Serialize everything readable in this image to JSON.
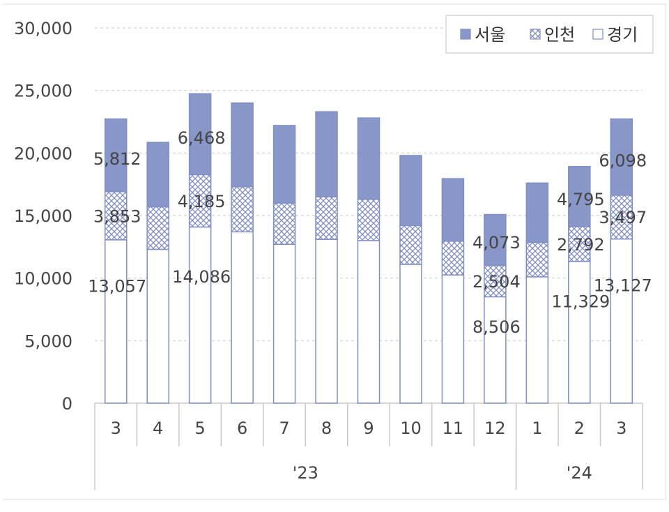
{
  "chart_data": {
    "type": "bar",
    "stacked": true,
    "categories": [
      "3",
      "4",
      "5",
      "6",
      "7",
      "8",
      "9",
      "10",
      "11",
      "12",
      "1",
      "2",
      "3"
    ],
    "groups": [
      {
        "label": "'23",
        "categories": [
          "3",
          "4",
          "5",
          "6",
          "7",
          "8",
          "9",
          "10",
          "11",
          "12"
        ]
      },
      {
        "label": "'24",
        "categories": [
          "1",
          "2",
          "3"
        ]
      }
    ],
    "series": [
      {
        "name": "경기",
        "fill": "pattern-none",
        "values": [
          13057,
          12300,
          14086,
          13700,
          12700,
          13100,
          13000,
          11100,
          10250,
          8506,
          10100,
          11329,
          13127
        ],
        "labels": [
          "13,057",
          "",
          "14,086",
          "",
          "",
          "",
          "",
          "",
          "",
          "8,506",
          "",
          "11,329",
          "13,127"
        ]
      },
      {
        "name": "인천",
        "fill": "crosshatch",
        "values": [
          3853,
          3400,
          4185,
          3600,
          3300,
          3400,
          3300,
          3100,
          2700,
          2504,
          2750,
          2792,
          3497
        ],
        "labels": [
          "3,853",
          "",
          "4,185",
          "",
          "",
          "",
          "",
          "",
          "",
          "2,504",
          "",
          "2,792",
          "3,497"
        ]
      },
      {
        "name": "서울",
        "fill": "solid",
        "values": [
          5812,
          5150,
          6468,
          6700,
          6200,
          6800,
          6500,
          5600,
          5000,
          4073,
          4750,
          4795,
          6098
        ],
        "labels": [
          "5,812",
          "",
          "6,468",
          "",
          "",
          "",
          "",
          "",
          "",
          "4,073",
          "",
          "4,795",
          "6,098"
        ]
      }
    ],
    "yticks": [
      "0",
      "5,000",
      "10,000",
      "15,000",
      "20,000",
      "25,000",
      "30,000"
    ],
    "ylim": [
      0,
      30000
    ],
    "grid": true,
    "legend_position": "top-right",
    "legend_order": [
      "서울",
      "인천",
      "경기"
    ],
    "colors": {
      "bar": "#8896c8",
      "hatch": "#7e8cc2",
      "outline": "#7f8ec5",
      "grid": "#cfcfcf",
      "axis": "#c8c8c8",
      "text": "#444444"
    }
  }
}
